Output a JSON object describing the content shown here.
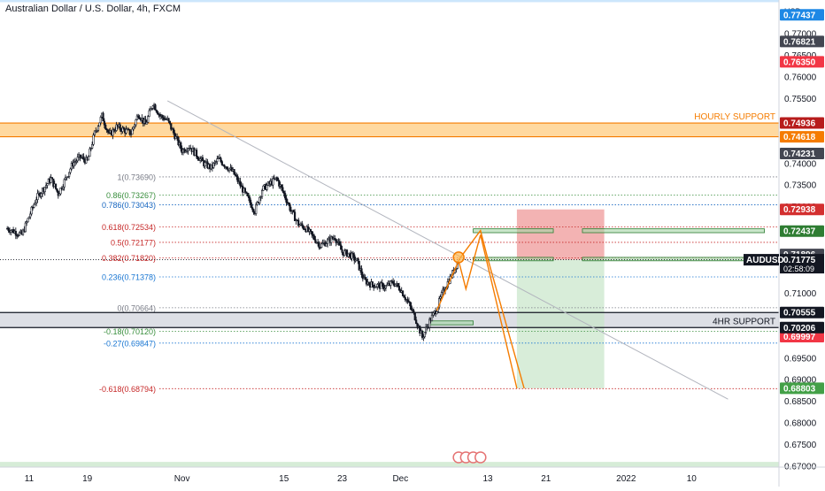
{
  "header": {
    "title": "Australian Dollar / U.S. Dollar, 4h, FXCM",
    "currency": "USD"
  },
  "chart_data": {
    "type": "candlestick",
    "symbol": "AUDUSD",
    "ylim": [
      0.6698,
      0.7778
    ],
    "grid": false,
    "y_ticks": [
      {
        "value": 0.77,
        "label": "0.77000"
      },
      {
        "value": 0.765,
        "label": "0.76500"
      },
      {
        "value": 0.76,
        "label": "0.76000"
      },
      {
        "value": 0.755,
        "label": "0.75500"
      },
      {
        "value": 0.74,
        "label": "0.74000"
      },
      {
        "value": 0.735,
        "label": "0.73500"
      },
      {
        "value": 0.73,
        "label": "0.73000"
      },
      {
        "value": 0.71,
        "label": "0.71000"
      },
      {
        "value": 0.695,
        "label": "0.69500"
      },
      {
        "value": 0.69,
        "label": "0.69000"
      },
      {
        "value": 0.685,
        "label": "0.68500"
      },
      {
        "value": 0.68,
        "label": "0.68000"
      },
      {
        "value": 0.675,
        "label": "0.67500"
      },
      {
        "value": 0.67,
        "label": "0.67000"
      }
    ],
    "x_labels": [
      {
        "label": "11",
        "date": "2021-10-11"
      },
      {
        "label": "19",
        "date": "2021-10-19"
      },
      {
        "label": "Nov",
        "date": "2021-11-01"
      },
      {
        "label": "15",
        "date": "2021-11-15"
      },
      {
        "label": "23",
        "date": "2021-11-23"
      },
      {
        "label": "Dec",
        "date": "2021-12-01"
      },
      {
        "label": "13",
        "date": "2021-12-13"
      },
      {
        "label": "21",
        "date": "2021-12-21"
      },
      {
        "label": "2022",
        "date": "2022-01-01"
      },
      {
        "label": "10",
        "date": "2022-01-10"
      }
    ],
    "price_path": [
      {
        "x": "2021-10-08",
        "y": 0.725
      },
      {
        "x": "2021-10-10",
        "y": 0.7235
      },
      {
        "x": "2021-10-12",
        "y": 0.732
      },
      {
        "x": "2021-10-14",
        "y": 0.7365
      },
      {
        "x": "2021-10-15",
        "y": 0.733
      },
      {
        "x": "2021-10-17",
        "y": 0.74
      },
      {
        "x": "2021-10-18",
        "y": 0.7415
      },
      {
        "x": "2021-10-19",
        "y": 0.7405
      },
      {
        "x": "2021-10-20",
        "y": 0.747
      },
      {
        "x": "2021-10-21",
        "y": 0.751
      },
      {
        "x": "2021-10-22",
        "y": 0.7465
      },
      {
        "x": "2021-10-23",
        "y": 0.7485
      },
      {
        "x": "2021-10-25",
        "y": 0.747
      },
      {
        "x": "2021-10-26",
        "y": 0.7515
      },
      {
        "x": "2021-10-27",
        "y": 0.749
      },
      {
        "x": "2021-10-28",
        "y": 0.754
      },
      {
        "x": "2021-10-29",
        "y": 0.751
      },
      {
        "x": "2021-10-30",
        "y": 0.75
      },
      {
        "x": "2021-11-01",
        "y": 0.743
      },
      {
        "x": "2021-11-02",
        "y": 0.744
      },
      {
        "x": "2021-11-03",
        "y": 0.742
      },
      {
        "x": "2021-11-04",
        "y": 0.74
      },
      {
        "x": "2021-11-05",
        "y": 0.739
      },
      {
        "x": "2021-11-06",
        "y": 0.741
      },
      {
        "x": "2021-11-08",
        "y": 0.738
      },
      {
        "x": "2021-11-09",
        "y": 0.735
      },
      {
        "x": "2021-11-10",
        "y": 0.732
      },
      {
        "x": "2021-11-11",
        "y": 0.729
      },
      {
        "x": "2021-11-12",
        "y": 0.734
      },
      {
        "x": "2021-11-14",
        "y": 0.7365
      },
      {
        "x": "2021-11-15",
        "y": 0.733
      },
      {
        "x": "2021-11-16",
        "y": 0.729
      },
      {
        "x": "2021-11-17",
        "y": 0.726
      },
      {
        "x": "2021-11-18",
        "y": 0.725
      },
      {
        "x": "2021-11-19",
        "y": 0.723
      },
      {
        "x": "2021-11-20",
        "y": 0.721
      },
      {
        "x": "2021-11-22",
        "y": 0.723
      },
      {
        "x": "2021-11-23",
        "y": 0.7195
      },
      {
        "x": "2021-11-24",
        "y": 0.719
      },
      {
        "x": "2021-11-25",
        "y": 0.7175
      },
      {
        "x": "2021-11-26",
        "y": 0.713
      },
      {
        "x": "2021-11-27",
        "y": 0.712
      },
      {
        "x": "2021-11-29",
        "y": 0.7115
      },
      {
        "x": "2021-11-30",
        "y": 0.7125
      },
      {
        "x": "2021-12-01",
        "y": 0.711
      },
      {
        "x": "2021-12-02",
        "y": 0.708
      },
      {
        "x": "2021-12-03",
        "y": 0.7045
      },
      {
        "x": "2021-12-04",
        "y": 0.6998
      },
      {
        "x": "2021-12-05",
        "y": 0.7035
      },
      {
        "x": "2021-12-06",
        "y": 0.7065
      },
      {
        "x": "2021-12-07",
        "y": 0.711
      },
      {
        "x": "2021-12-08",
        "y": 0.714
      },
      {
        "x": "2021-12-09",
        "y": 0.7177
      }
    ],
    "horizontal_lines": [
      {
        "price": 0.74936,
        "color": "#f57c00",
        "label": "HOURLY SUPPORT",
        "axis_label": "0.74936",
        "axis_color": "#b71c1c"
      },
      {
        "price": 0.74618,
        "color": "#f57c00",
        "axis_label": "0.74618",
        "axis_color": "#f57c00"
      },
      {
        "price": 0.70555,
        "color": "#131722",
        "axis_label": "0.70555",
        "axis_color": "#131722"
      },
      {
        "price": 0.70206,
        "color": "#131722",
        "label": "4HR SUPPORT",
        "axis_label": "0.70206",
        "axis_color": "#131722"
      }
    ],
    "zones": [
      {
        "from": 0.74618,
        "to": 0.74936,
        "color": "#ffcc80",
        "name": "hourly-support-zone"
      },
      {
        "from": 0.70206,
        "to": 0.70555,
        "color": "#d1d4dc",
        "name": "4hr-support-zone"
      },
      {
        "from": 0.6698,
        "to": 0.671,
        "color": "#c8e6c9",
        "name": "bottom-green-zone"
      },
      {
        "from": 0.7773,
        "to": 0.7778,
        "color": "#bbdefb",
        "name": "top-blue-zone"
      }
    ],
    "fibonacci": [
      {
        "level": "1(0.73690)",
        "price": 0.7369,
        "color": "#787b86"
      },
      {
        "level": "0.86(0.73267)",
        "price": 0.73267,
        "color": "#388e3c"
      },
      {
        "level": "0.786(0.73043)",
        "price": 0.73043,
        "color": "#1565c0"
      },
      {
        "level": "0.618(0.72534)",
        "price": 0.72534,
        "color": "#c62828"
      },
      {
        "level": "0.5(0.72177)",
        "price": 0.72177,
        "color": "#c62828"
      },
      {
        "level": "0.382(0.71820)",
        "price": 0.7182,
        "color": "#c62828"
      },
      {
        "level": "0.236(0.71378)",
        "price": 0.71378,
        "color": "#1976d2"
      },
      {
        "level": "0(0.70664)",
        "price": 0.70664,
        "color": "#787b86"
      },
      {
        "level": "-0.18(0.70120)",
        "price": 0.7012,
        "color": "#388e3c"
      },
      {
        "level": "-0.27(0.69847)",
        "price": 0.69847,
        "color": "#1976d2"
      },
      {
        "level": "-0.618(0.68794)",
        "price": 0.68794,
        "color": "#c62828"
      }
    ],
    "right_axis_labels": [
      {
        "label": "0.77437",
        "price": 0.77437,
        "color": "#1e88e5"
      },
      {
        "label": "0.76821",
        "price": 0.76821,
        "color": "#434651"
      },
      {
        "label": "0.76350",
        "price": 0.7635,
        "color": "#f23645"
      },
      {
        "label": "0.74231",
        "price": 0.74231,
        "color": "#434651"
      },
      {
        "label": "0.72938",
        "price": 0.72938,
        "color": "#d32f2f"
      },
      {
        "label": "0.72437",
        "price": 0.72437,
        "color": "#2e7d32"
      },
      {
        "label": "0.71896",
        "price": 0.71896,
        "color": "#434651"
      },
      {
        "label": "0.69997",
        "price": 0.69997,
        "color": "#f23645"
      },
      {
        "label": "0.68803",
        "price": 0.68803,
        "color": "#43a047"
      }
    ],
    "current_price": {
      "symbol": "AUDUSD",
      "price": 0.71775,
      "label": "0.71775",
      "countdown": "02:58:09"
    },
    "trend_line": {
      "from": {
        "x": "2021-10-30",
        "y": 0.7545
      },
      "to": {
        "x": "2022-01-15",
        "y": 0.6855
      },
      "color": "#b2b5be"
    },
    "position": {
      "entry": 0.71775,
      "stop": 0.72938,
      "target": 0.68803,
      "from": "2021-12-17",
      "to": "2021-12-29",
      "risk_color": "#ef9a9a",
      "reward_color": "#c8e6c9"
    },
    "order_blocks": [
      {
        "from_date": "2021-12-11",
        "to_date": "2021-12-22",
        "high": 0.7249,
        "low": 0.724
      },
      {
        "from_date": "2021-12-11",
        "to_date": "2021-12-22",
        "high": 0.7183,
        "low": 0.7175
      },
      {
        "from_date": "2021-12-26",
        "to_date": "2022-01-20",
        "high": 0.7249,
        "low": 0.724
      },
      {
        "from_date": "2021-12-26",
        "to_date": "2022-01-20",
        "high": 0.7183,
        "low": 0.7175
      },
      {
        "from_date": "2021-12-05",
        "to_date": "2021-12-11",
        "high": 0.7036,
        "low": 0.7027
      }
    ],
    "projection_paths": [
      {
        "color": "#f57c00",
        "points": [
          {
            "x": "2021-12-09",
            "y": 0.7177
          },
          {
            "x": "2021-12-12",
            "y": 0.7245
          },
          {
            "x": "2021-12-13",
            "y": 0.718
          },
          {
            "x": "2021-12-18",
            "y": 0.688
          }
        ]
      },
      {
        "color": "#f57c00",
        "points": [
          {
            "x": "2021-12-06",
            "y": 0.706
          },
          {
            "x": "2021-12-09",
            "y": 0.7175
          },
          {
            "x": "2021-12-10",
            "y": 0.711
          },
          {
            "x": "2021-12-12",
            "y": 0.7235
          },
          {
            "x": "2021-12-17",
            "y": 0.688
          }
        ]
      }
    ]
  }
}
